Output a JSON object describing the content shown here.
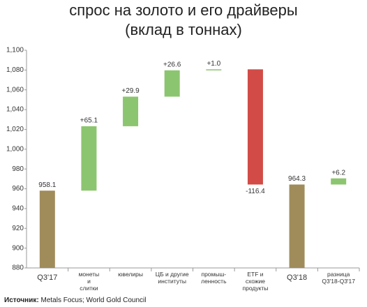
{
  "chart_data": {
    "type": "waterfall",
    "title": "спрос на золото и его драйверы",
    "subtitle": "(вклад в тоннах)",
    "categories": [
      "Q3'17",
      "монеты\nи\nслитки",
      "ювелиры",
      "ЦБ и другие\nинституты",
      "промыш-\nленность",
      "ETF и\nсхожие\nпродукты",
      "Q3'18",
      "разница\nQ3'18-Q3'17"
    ],
    "kinds": [
      "total",
      "delta",
      "delta",
      "delta",
      "delta",
      "delta",
      "total",
      "delta"
    ],
    "values": [
      958.1,
      65.1,
      29.9,
      26.6,
      1.0,
      -116.4,
      964.3,
      6.2
    ],
    "value_labels": [
      "958.1",
      "+65.1",
      "+29.9",
      "+26.6",
      "+1.0",
      "-116.4",
      "964.3",
      "+6.2"
    ],
    "colors": {
      "total": "#a08c5b",
      "positive": "#8cc56f",
      "negative": "#d24b46"
    },
    "ylim": [
      880,
      1100
    ],
    "yticks": [
      880,
      900,
      920,
      940,
      960,
      980,
      {
        "value": 1000,
        "label": "1,000"
      },
      {
        "value": 1020,
        "label": "1,020"
      },
      {
        "value": 1040,
        "label": "1,040"
      },
      {
        "value": 1060,
        "label": "1,060"
      },
      {
        "value": 1080,
        "label": "1,080"
      },
      {
        "value": 1100,
        "label": "1,100"
      }
    ],
    "grid": false,
    "source_label": "Источник:",
    "source": "Metals Focus; World Gold Council"
  }
}
